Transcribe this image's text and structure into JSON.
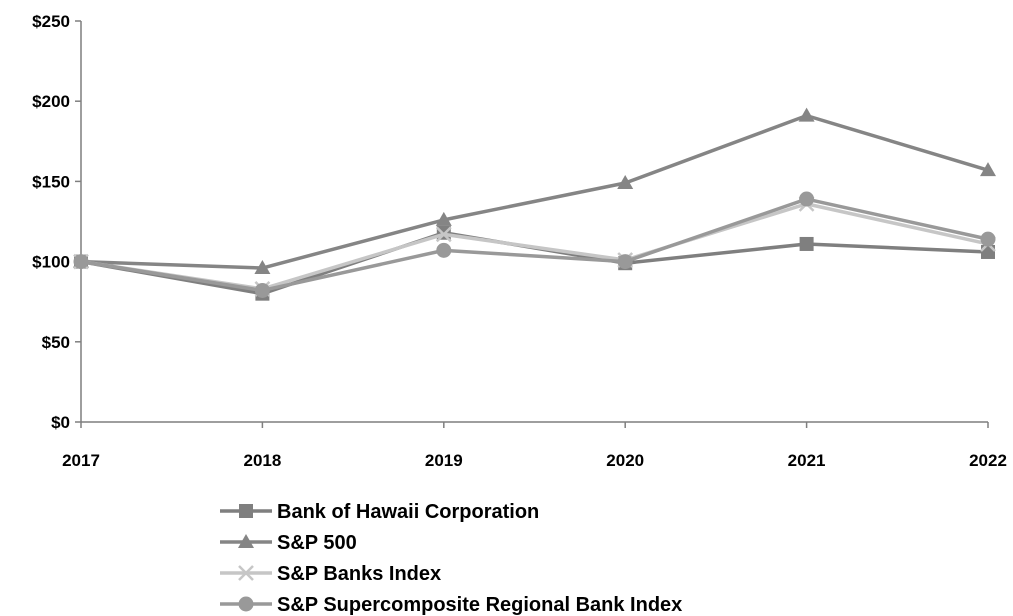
{
  "chart_data": {
    "type": "line",
    "title": "",
    "xlabel": "",
    "ylabel": "",
    "x": [
      "2017",
      "2018",
      "2019",
      "2020",
      "2021",
      "2022"
    ],
    "ylim": [
      0,
      250
    ],
    "yticks": [
      0,
      50,
      100,
      150,
      200,
      250
    ],
    "ytick_labels": [
      "$0",
      "$50",
      "$100",
      "$150",
      "$200",
      "$250"
    ],
    "grid": false,
    "legend_position": "bottom",
    "series": [
      {
        "name": "Bank of Hawaii Corporation",
        "values": [
          100,
          80,
          118,
          99,
          111,
          106
        ],
        "marker": "square",
        "color": "#7f7f7f"
      },
      {
        "name": "S&P 500",
        "values": [
          100,
          96,
          126,
          149,
          191,
          157
        ],
        "marker": "triangle",
        "color": "#858585"
      },
      {
        "name": "S&P Banks Index",
        "values": [
          100,
          83,
          117,
          101,
          136,
          111
        ],
        "marker": "x",
        "color": "#c6c6c6"
      },
      {
        "name": "S&P Supercomposite Regional Bank Index",
        "values": [
          100,
          82,
          107,
          100,
          139,
          114
        ],
        "marker": "circle",
        "color": "#999999"
      }
    ]
  }
}
